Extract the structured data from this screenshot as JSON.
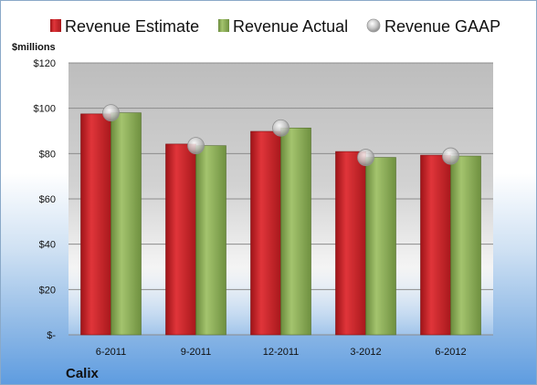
{
  "chart_data": {
    "type": "bar",
    "categories": [
      "6-2011",
      "9-2011",
      "12-2011",
      "3-2012",
      "6-2012"
    ],
    "series": [
      {
        "name": "Revenue Estimate",
        "kind": "bar",
        "color": "#c8252a",
        "values": [
          97.5,
          84.2,
          89.8,
          80.9,
          79.3
        ]
      },
      {
        "name": "Revenue Actual",
        "kind": "bar",
        "color": "#8aab5a",
        "values": [
          98.0,
          83.5,
          91.3,
          78.3,
          78.9
        ]
      },
      {
        "name": "Revenue GAAP",
        "kind": "marker",
        "color": "#b9b9b9",
        "values": [
          98.0,
          83.5,
          91.3,
          78.3,
          78.9
        ]
      }
    ],
    "ylabel": "$millions",
    "ylim": [
      0,
      120
    ],
    "yticks": [
      0,
      20,
      40,
      60,
      80,
      100,
      120
    ],
    "ytick_labels": [
      "$-",
      "$20",
      "$40",
      "$60",
      "$80",
      "$100",
      "$120"
    ],
    "grid": true,
    "legend_position": "top",
    "footer_label": "Calix"
  }
}
